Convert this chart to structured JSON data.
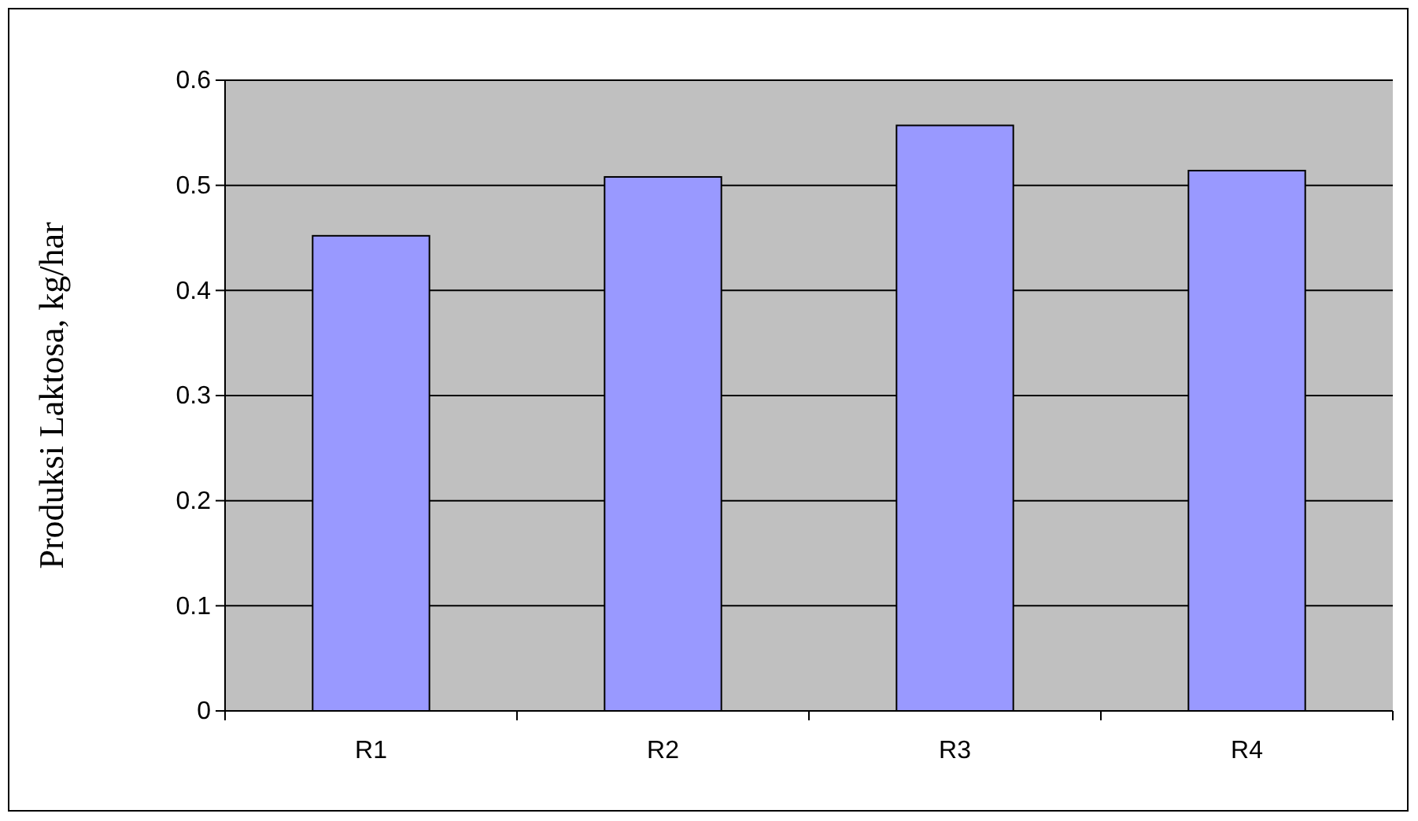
{
  "chart_data": {
    "type": "bar",
    "ylabel": "Produksi Laktosa, kg/har",
    "categories": [
      "R1",
      "R2",
      "R3",
      "R4"
    ],
    "values": [
      0.452,
      0.508,
      0.557,
      0.514
    ],
    "color": "#9999ff",
    "ylim": [
      0,
      0.6
    ],
    "yticks": [
      {
        "value": 0,
        "label": "0"
      },
      0.1,
      0.2,
      0.3,
      0.4,
      0.5,
      0.6
    ],
    "grid": "y"
  }
}
